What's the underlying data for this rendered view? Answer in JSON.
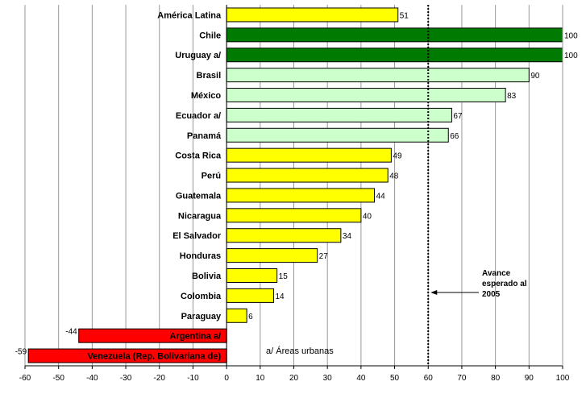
{
  "chart_data": {
    "type": "bar",
    "orientation": "horizontal",
    "title": "",
    "xlabel": "",
    "ylabel": "",
    "xlim": [
      -60,
      100
    ],
    "xticks": [
      -60,
      -50,
      -40,
      -30,
      -20,
      -10,
      0,
      10,
      20,
      30,
      40,
      50,
      60,
      70,
      80,
      90,
      100
    ],
    "grid": true,
    "categories": [
      "América Latina",
      "Chile",
      "Uruguay a/",
      "Brasil",
      "México",
      "Ecuador a/",
      "Panamá",
      "Costa Rica",
      "Perú",
      "Guatemala",
      "Nicaragua",
      "El Salvador",
      "Honduras",
      "Bolivia",
      "Colombia",
      "Paraguay",
      "Argentina a/",
      "Venezuela (Rep. Bolivariana de)"
    ],
    "values": [
      51,
      100,
      100,
      90,
      83,
      67,
      66,
      49,
      48,
      44,
      40,
      34,
      27,
      15,
      14,
      6,
      -44,
      -59
    ],
    "value_labels": [
      "51",
      "100",
      "100",
      "90",
      "83",
      "67",
      "66",
      "49",
      "48",
      "44",
      "40",
      "34",
      "27",
      "15",
      "14",
      "6",
      "-44",
      "-59"
    ],
    "bar_colors": [
      "#ffff00",
      "#007a00",
      "#007a00",
      "#ccffcc",
      "#ccffcc",
      "#ccffcc",
      "#ccffcc",
      "#ffff00",
      "#ffff00",
      "#ffff00",
      "#ffff00",
      "#ffff00",
      "#ffff00",
      "#ffff00",
      "#ffff00",
      "#ffff00",
      "#ff0000",
      "#ff0000"
    ],
    "reference_line": {
      "value": 60,
      "style": "dotted",
      "color": "#000000"
    },
    "annotation": {
      "lines": [
        "Avance",
        "esperado al",
        "2005"
      ],
      "points_to": 60
    },
    "footnote": "a/ Áreas urbanas"
  }
}
